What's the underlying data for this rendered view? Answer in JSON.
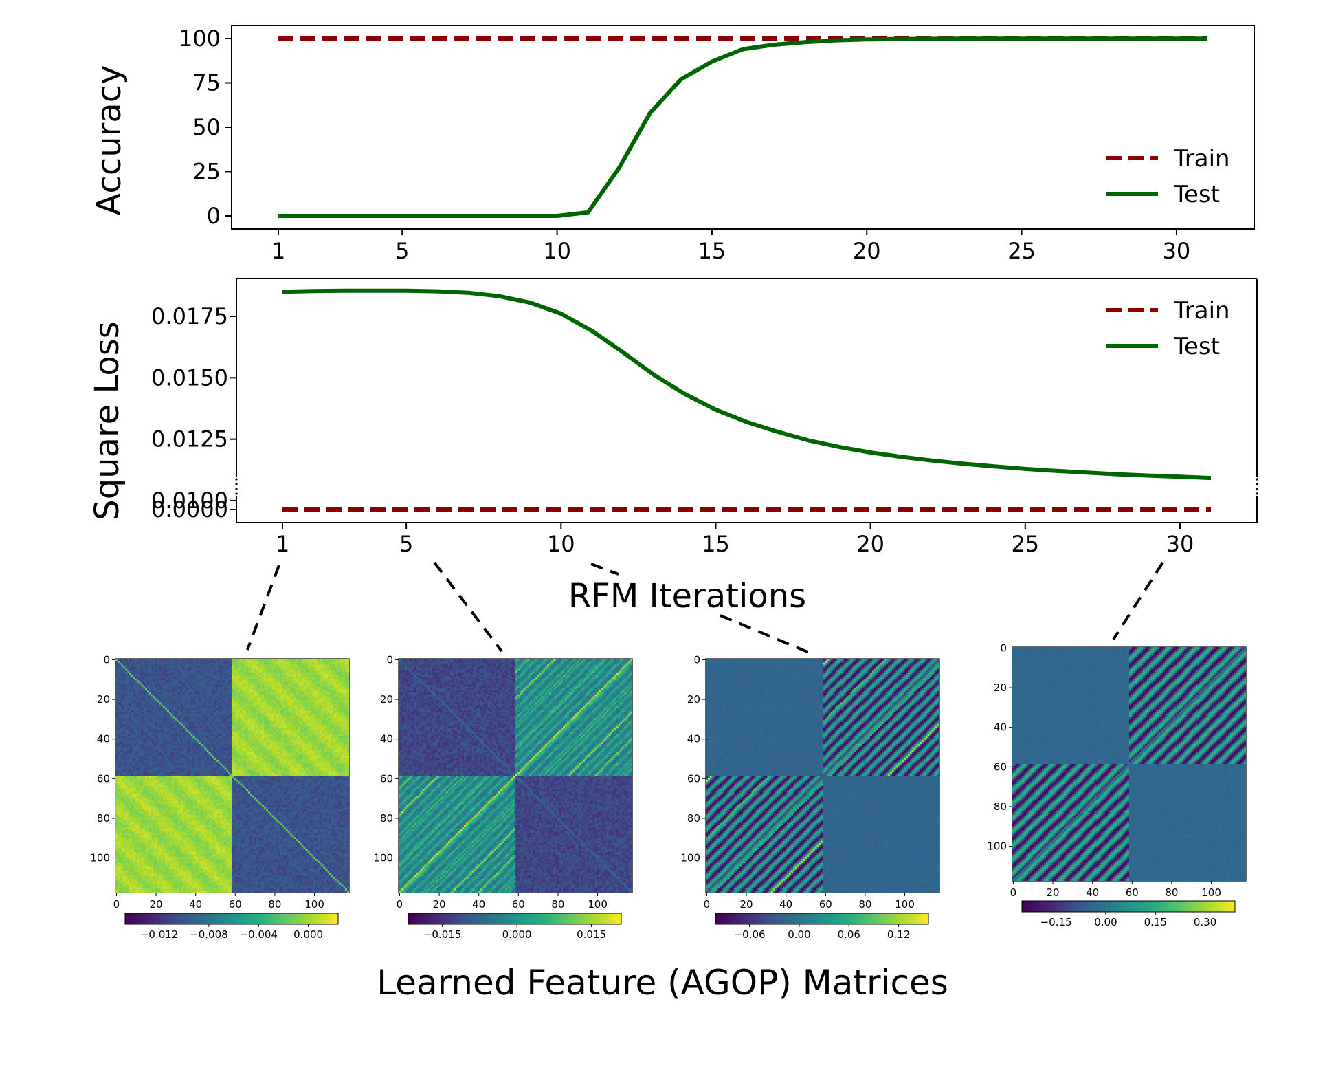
{
  "chart_data": [
    {
      "type": "line",
      "ylabel": "Accuracy",
      "xticks": [
        1,
        5,
        10,
        15,
        20,
        25,
        30
      ],
      "yticks": [
        0,
        25,
        50,
        75,
        100
      ],
      "xlim": [
        1,
        31
      ],
      "ylim": [
        -7,
        107
      ],
      "legend_position": "right",
      "series": [
        {
          "name": "Train",
          "color": "#8b0000",
          "style": "dashed",
          "x": [
            1,
            31
          ],
          "y": [
            100,
            100
          ]
        },
        {
          "name": "Test",
          "color": "#006400",
          "style": "solid",
          "x": [
            1,
            2,
            3,
            4,
            5,
            6,
            7,
            8,
            9,
            10,
            11,
            12,
            13,
            14,
            15,
            16,
            17,
            18,
            19,
            20,
            21,
            22,
            23,
            24,
            25,
            26,
            27,
            28,
            29,
            30,
            31
          ],
          "y": [
            0,
            0,
            0,
            0,
            0,
            0,
            0,
            0,
            0,
            0,
            2,
            27,
            58,
            77,
            87,
            94,
            96.5,
            98,
            99,
            99.5,
            99.7,
            99.8,
            99.9,
            99.9,
            99.9,
            99.9,
            99.9,
            99.9,
            99.9,
            99.9,
            99.9
          ]
        }
      ]
    },
    {
      "type": "line",
      "ylabel": "Square Loss",
      "xlabel": "RFM Iterations",
      "xticks": [
        1,
        5,
        10,
        15,
        20,
        25,
        30
      ],
      "yticks": [
        "0.0000",
        "0.0100",
        "0.0125",
        "0.0150",
        "0.0175"
      ],
      "y_axis_break": "between 0.0000 and 0.0100",
      "xlim": [
        1,
        31
      ],
      "legend_position": "top-right",
      "series": [
        {
          "name": "Train",
          "color": "#8b0000",
          "style": "dashed",
          "x": [
            1,
            31
          ],
          "y": [
            0,
            0
          ]
        },
        {
          "name": "Test",
          "color": "#006400",
          "style": "solid",
          "x": [
            1,
            2,
            3,
            4,
            5,
            6,
            7,
            8,
            9,
            10,
            11,
            12,
            13,
            14,
            15,
            16,
            17,
            18,
            19,
            20,
            21,
            22,
            23,
            24,
            25,
            26,
            27,
            28,
            29,
            30,
            31
          ],
          "y": [
            0.0185,
            0.01853,
            0.01854,
            0.01854,
            0.01854,
            0.01852,
            0.01846,
            0.01832,
            0.01806,
            0.01761,
            0.01691,
            0.01604,
            0.01512,
            0.01434,
            0.0137,
            0.0132,
            0.0128,
            0.01245,
            0.01218,
            0.01196,
            0.01178,
            0.01163,
            0.0115,
            0.01139,
            0.01129,
            0.01121,
            0.01114,
            0.01107,
            0.01102,
            0.01097,
            0.01092
          ]
        }
      ]
    },
    {
      "type": "heatmap",
      "iteration": 1,
      "size": 118,
      "xticks": [
        0,
        20,
        40,
        60,
        80,
        100
      ],
      "yticks": [
        0,
        20,
        40,
        60,
        80,
        100
      ],
      "colorbar_ticks": [
        "−0.012",
        "−0.008",
        "−0.004",
        "0.000"
      ],
      "colormap": "viridis",
      "pattern": "off-diagonal blocks high, diagonal blocks low with bright main diagonal"
    },
    {
      "type": "heatmap",
      "iteration": 5,
      "size": 118,
      "xticks": [
        0,
        20,
        40,
        60,
        80,
        100
      ],
      "yticks": [
        0,
        20,
        40,
        60,
        80,
        100
      ],
      "colorbar_ticks": [
        "−0.015",
        "0.000",
        "0.015"
      ],
      "colormap": "viridis",
      "pattern": "off-diagonal blocks with diagonal stripes, dark diagonal blocks"
    },
    {
      "type": "heatmap",
      "iteration": 10,
      "size": 118,
      "xticks": [
        0,
        20,
        40,
        60,
        80,
        100
      ],
      "yticks": [
        0,
        20,
        40,
        60,
        80,
        100
      ],
      "colorbar_ticks": [
        "−0.06",
        "0.00",
        "0.06",
        "0.12"
      ],
      "colormap": "viridis",
      "pattern": "flat diagonal blocks, striped off-diagonal blocks"
    },
    {
      "type": "heatmap",
      "iteration": 31,
      "size": 118,
      "xticks": [
        0,
        20,
        40,
        60,
        80,
        100
      ],
      "yticks": [
        0,
        20,
        40,
        60,
        80,
        100
      ],
      "colorbar_ticks": [
        "−0.15",
        "0.00",
        "0.15",
        "0.30"
      ],
      "colormap": "viridis",
      "pattern": "flat diagonal blocks, strong anti-diagonal stripes in off-diagonal blocks"
    }
  ],
  "figure": {
    "bottom_caption": "Learned Feature (AGOP) Matrices"
  },
  "colors": {
    "train": "#8b0000",
    "test": "#006400",
    "axes": "#000000"
  }
}
